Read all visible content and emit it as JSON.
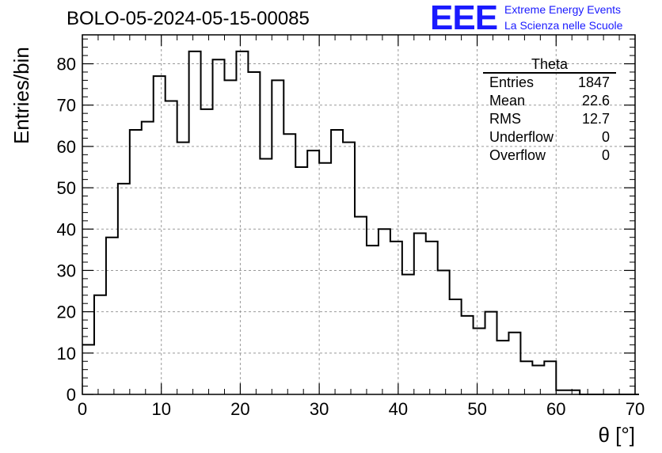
{
  "title": "BOLO-05-2024-05-15-00085",
  "logo": {
    "mark": "EEE",
    "line1": "Extreme Energy Events",
    "line2": "La Scienza nelle Scuole",
    "color": "#1a1aff"
  },
  "stats": {
    "name": "Theta",
    "entries_label": "Entries",
    "entries": "1847",
    "mean_label": "Mean",
    "mean": "22.6",
    "rms_label": "RMS",
    "rms": "12.7",
    "underflow_label": "Underflow",
    "underflow": "0",
    "overflow_label": "Overflow",
    "overflow": "0"
  },
  "chart_data": {
    "type": "bar",
    "style": "step-histogram",
    "title": "BOLO-05-2024-05-15-00085",
    "xlabel": "θ [°]",
    "ylabel": "Entries/bin",
    "xlim": [
      0,
      70
    ],
    "ylim": [
      0,
      87
    ],
    "bin_width": 1.5,
    "x_start": 0,
    "values": [
      12,
      24,
      38,
      51,
      64,
      66,
      77,
      71,
      61,
      83,
      69,
      81,
      76,
      83,
      78,
      57,
      76,
      63,
      55,
      59,
      56,
      64,
      61,
      43,
      36,
      40,
      37,
      29,
      39,
      37,
      30,
      23,
      19,
      16,
      20,
      13,
      15,
      8,
      7,
      8,
      1,
      1,
      0,
      0,
      0,
      0,
      0
    ],
    "xticks": [
      0,
      10,
      20,
      30,
      40,
      50,
      60,
      70
    ],
    "yticks": [
      0,
      10,
      20,
      30,
      40,
      50,
      60,
      70,
      80
    ],
    "grid": true
  }
}
